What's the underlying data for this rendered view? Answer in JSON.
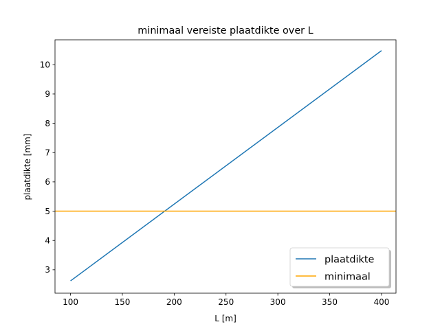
{
  "chart_data": {
    "type": "line",
    "title": "minimaal vereiste plaatdikte over L",
    "xlabel": "L [m]",
    "ylabel": "plaatdikte [mm]",
    "xlim": [
      85,
      414
    ],
    "ylim": [
      2.2,
      10.85
    ],
    "xticks": [
      100,
      150,
      200,
      250,
      300,
      350,
      400
    ],
    "yticks": [
      3,
      4,
      5,
      6,
      7,
      8,
      9,
      10
    ],
    "grid": false,
    "legend_placement": "lower-right",
    "series": [
      {
        "name": "plaatdikte",
        "color": "#1f77b4",
        "x": [
          100,
          400
        ],
        "y": [
          2.62,
          10.48
        ]
      },
      {
        "name": "minimaal",
        "color": "#ffa500",
        "kind": "hline",
        "y": 5
      }
    ]
  }
}
